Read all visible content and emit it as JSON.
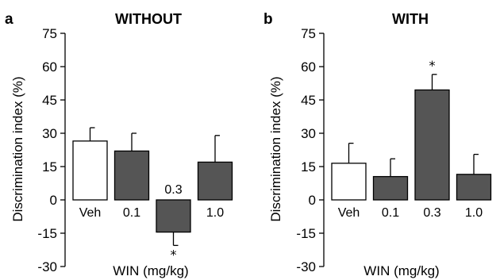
{
  "chart_data": [
    {
      "type": "bar",
      "panel_letter": "a",
      "title": "WITHOUT",
      "categories": [
        "Veh",
        "0.1",
        "0.3",
        "1.0"
      ],
      "values": [
        26.5,
        22,
        -14.5,
        17
      ],
      "errors": [
        6,
        8,
        6,
        12
      ],
      "bar_colors": [
        "#ffffff",
        "#555555",
        "#555555",
        "#555555"
      ],
      "significant": [
        false,
        false,
        true,
        false
      ],
      "significance_marker": "*",
      "ylabel": "Discrimination index (%)",
      "xlabel": "WIN (mg/kg)",
      "ylim": [
        -30,
        75
      ],
      "yticks": [
        -30,
        -15,
        0,
        15,
        30,
        45,
        60,
        75
      ]
    },
    {
      "type": "bar",
      "panel_letter": "b",
      "title": "WITH",
      "categories": [
        "Veh",
        "0.1",
        "0.3",
        "1.0"
      ],
      "values": [
        16.5,
        10.5,
        49.5,
        11.5
      ],
      "errors": [
        9,
        8,
        7,
        9
      ],
      "bar_colors": [
        "#ffffff",
        "#555555",
        "#555555",
        "#555555"
      ],
      "significant": [
        false,
        false,
        true,
        false
      ],
      "significance_marker": "*",
      "ylabel": "Discrimination index (%)",
      "xlabel": "WIN (mg/kg)",
      "ylim": [
        -30,
        75
      ],
      "yticks": [
        -30,
        -15,
        0,
        15,
        30,
        45,
        60,
        75
      ]
    }
  ]
}
